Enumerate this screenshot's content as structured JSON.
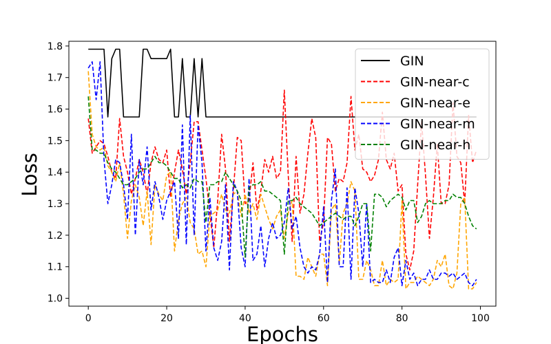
{
  "chart_data": {
    "type": "line",
    "title": "",
    "xlabel": "Epochs",
    "ylabel": "Loss",
    "xlim": [
      -4.95,
      103.95
    ],
    "ylim": [
      0.975,
      1.815
    ],
    "xticks": [
      0,
      20,
      40,
      60,
      80,
      100
    ],
    "yticks": [
      1.0,
      1.1,
      1.2,
      1.3,
      1.4,
      1.5,
      1.6,
      1.7,
      1.8
    ],
    "grid": false,
    "legend_position": "top-right",
    "series": [
      {
        "name": "GIN",
        "color": "#000000",
        "dash": "solid",
        "values": [
          1.79,
          1.79,
          1.79,
          1.79,
          1.79,
          1.575,
          1.76,
          1.79,
          1.79,
          1.575,
          1.575,
          1.575,
          1.575,
          1.575,
          1.79,
          1.79,
          1.76,
          1.76,
          1.76,
          1.76,
          1.76,
          1.79,
          1.575,
          1.575,
          1.76,
          1.575,
          1.575,
          1.76,
          1.575,
          1.76,
          1.575,
          1.575,
          1.575,
          1.575,
          1.575,
          1.575,
          1.575,
          1.575,
          1.575,
          1.575,
          1.575,
          1.575,
          1.575,
          1.575,
          1.575,
          1.575,
          1.575,
          1.575,
          1.575,
          1.575,
          1.575,
          1.575,
          1.575,
          1.575,
          1.575,
          1.575,
          1.575,
          1.575,
          1.575,
          1.575,
          1.575,
          1.575,
          1.575,
          1.575,
          1.575,
          1.575,
          1.575,
          1.575,
          1.575,
          1.575,
          1.575,
          1.575,
          1.575,
          1.575,
          1.575,
          1.575,
          1.575,
          1.575,
          1.575,
          1.575,
          1.575,
          1.575,
          1.575,
          1.575,
          1.575,
          1.575,
          1.575,
          1.575,
          1.575,
          1.575,
          1.575,
          1.575,
          1.575,
          1.575,
          1.575,
          1.575,
          1.575,
          1.575,
          1.575,
          1.575
        ]
      },
      {
        "name": "GIN-near-c",
        "color": "#ff0000",
        "dash": "dashed",
        "values": [
          1.57,
          1.46,
          1.48,
          1.5,
          1.49,
          1.45,
          1.4,
          1.38,
          1.57,
          1.45,
          1.4,
          1.33,
          1.38,
          1.44,
          1.4,
          1.33,
          1.43,
          1.48,
          1.44,
          1.43,
          1.47,
          1.32,
          1.4,
          1.47,
          1.41,
          1.33,
          1.43,
          1.56,
          1.56,
          1.47,
          1.38,
          1.27,
          1.16,
          1.31,
          1.52,
          1.41,
          1.18,
          1.34,
          1.51,
          1.5,
          1.3,
          1.31,
          1.43,
          1.28,
          1.34,
          1.44,
          1.4,
          1.45,
          1.38,
          1.4,
          1.66,
          1.39,
          1.18,
          1.45,
          1.27,
          1.33,
          1.46,
          1.57,
          1.51,
          1.18,
          1.24,
          1.51,
          1.49,
          1.34,
          1.38,
          1.37,
          1.43,
          1.64,
          1.47,
          1.52,
          1.41,
          1.4,
          1.37,
          1.39,
          1.44,
          1.59,
          1.44,
          1.41,
          1.46,
          1.34,
          1.36,
          1.14,
          1.09,
          1.15,
          1.36,
          1.56,
          1.39,
          1.19,
          1.32,
          1.49,
          1.3,
          1.3,
          1.36,
          1.62,
          1.45,
          1.43,
          1.3,
          1.58,
          1.43,
          1.47
        ]
      },
      {
        "name": "GIN-near-e",
        "color": "#ffa500",
        "dash": "dashed",
        "values": [
          1.72,
          1.52,
          1.48,
          1.47,
          1.48,
          1.42,
          1.4,
          1.37,
          1.43,
          1.33,
          1.19,
          1.31,
          1.36,
          1.32,
          1.23,
          1.34,
          1.17,
          1.36,
          1.33,
          1.31,
          1.39,
          1.4,
          1.15,
          1.25,
          1.3,
          1.32,
          1.24,
          1.22,
          1.14,
          1.15,
          1.1,
          1.26,
          1.27,
          1.28,
          1.33,
          1.28,
          1.27,
          1.33,
          1.34,
          1.26,
          1.33,
          1.27,
          1.3,
          1.25,
          1.33,
          1.29,
          1.25,
          1.22,
          1.26,
          1.28,
          1.19,
          1.27,
          1.31,
          1.07,
          1.07,
          1.06,
          1.13,
          1.1,
          1.07,
          1.14,
          1.14,
          1.04,
          1.28,
          1.3,
          1.11,
          1.27,
          1.3,
          1.37,
          1.34,
          1.06,
          1.06,
          1.12,
          1.09,
          1.04,
          1.04,
          1.12,
          1.04,
          1.06,
          1.05,
          1.06,
          1.31,
          1.03,
          1.05,
          1.05,
          1.07,
          1.06,
          1.05,
          1.04,
          1.06,
          1.12,
          1.1,
          1.14,
          1.04,
          1.03,
          1.08,
          1.3,
          1.32,
          1.03,
          1.03,
          1.05
        ]
      },
      {
        "name": "GIN-near-m",
        "color": "#0000ff",
        "dash": "dashed",
        "values": [
          1.73,
          1.75,
          1.63,
          1.75,
          1.44,
          1.3,
          1.36,
          1.44,
          1.43,
          1.36,
          1.25,
          1.52,
          1.2,
          1.44,
          1.36,
          1.48,
          1.28,
          1.37,
          1.32,
          1.25,
          1.31,
          1.34,
          1.37,
          1.19,
          1.55,
          1.17,
          1.58,
          1.2,
          1.55,
          1.43,
          1.15,
          1.32,
          1.16,
          1.12,
          1.18,
          1.36,
          1.09,
          1.37,
          1.34,
          1.16,
          1.1,
          1.38,
          1.12,
          1.14,
          1.23,
          1.1,
          1.19,
          1.24,
          1.19,
          1.2,
          1.24,
          1.35,
          1.22,
          1.26,
          1.16,
          1.1,
          1.08,
          1.1,
          1.09,
          1.14,
          1.29,
          1.05,
          1.31,
          1.41,
          1.1,
          1.1,
          1.35,
          1.06,
          1.35,
          1.27,
          1.1,
          1.3,
          1.05,
          1.06,
          1.05,
          1.05,
          1.09,
          1.05,
          1.13,
          1.16,
          1.04,
          1.12,
          1.06,
          1.08,
          1.04,
          1.06,
          1.06,
          1.09,
          1.06,
          1.06,
          1.08,
          1.08,
          1.07,
          1.08,
          1.06,
          1.07,
          1.08,
          1.05,
          1.04,
          1.06
        ]
      },
      {
        "name": "GIN-near-h",
        "color": "#008000",
        "dash": "dashed",
        "values": [
          1.64,
          1.47,
          1.47,
          1.46,
          1.46,
          1.43,
          1.41,
          1.4,
          1.38,
          1.36,
          1.36,
          1.37,
          1.38,
          1.4,
          1.41,
          1.41,
          1.43,
          1.45,
          1.43,
          1.43,
          1.42,
          1.4,
          1.38,
          1.38,
          1.35,
          1.36,
          1.35,
          1.38,
          1.37,
          1.37,
          1.24,
          1.36,
          1.36,
          1.37,
          1.37,
          1.4,
          1.38,
          1.36,
          1.34,
          1.31,
          1.13,
          1.35,
          1.36,
          1.36,
          1.37,
          1.34,
          1.34,
          1.33,
          1.32,
          1.31,
          1.14,
          1.31,
          1.31,
          1.32,
          1.3,
          1.29,
          1.28,
          1.27,
          1.25,
          1.23,
          1.24,
          1.25,
          1.26,
          1.27,
          1.26,
          1.25,
          1.26,
          1.26,
          1.23,
          1.26,
          1.3,
          1.3,
          1.15,
          1.33,
          1.33,
          1.32,
          1.29,
          1.31,
          1.32,
          1.33,
          1.32,
          1.28,
          1.31,
          1.31,
          1.24,
          1.26,
          1.3,
          1.31,
          1.3,
          1.3,
          1.3,
          1.31,
          1.31,
          1.33,
          1.32,
          1.32,
          1.3,
          1.26,
          1.23,
          1.22
        ]
      }
    ]
  }
}
